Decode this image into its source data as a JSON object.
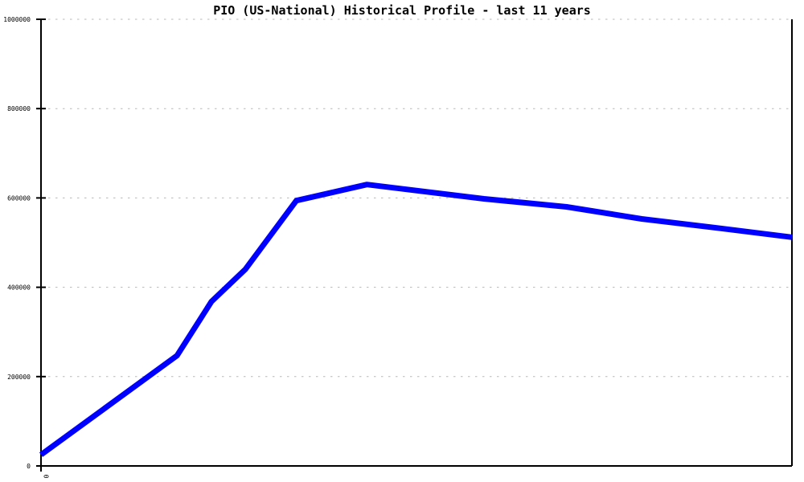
{
  "chart_data": {
    "type": "line",
    "title": "PIO (US-National) Historical Profile - last 11 years",
    "legend": "none",
    "background_color": "#ffffff",
    "axis_color": "#000000",
    "grid": {
      "horizontal_dotted": true,
      "color": "#b8b8b8"
    },
    "x_axis": {
      "label": "",
      "ticks": [
        {
          "label": "0",
          "x_frac": 0.0,
          "rotated": true
        }
      ]
    },
    "y_axis": {
      "label": "",
      "range": [
        0,
        1000000
      ],
      "ticks": [
        {
          "value": 0,
          "label": "0"
        },
        {
          "value": 200000,
          "label": "200000"
        },
        {
          "value": 400000,
          "label": "400000"
        },
        {
          "value": 600000,
          "label": "600000"
        },
        {
          "value": 800000,
          "label": "800000"
        },
        {
          "value": 1000000,
          "label": "1000000"
        }
      ]
    },
    "series": [
      {
        "name": "PIO (US-National) historical profile",
        "color": "#0000ff",
        "stroke_width": 7,
        "points": [
          {
            "x_frac": 0.0,
            "value": 25000
          },
          {
            "x_frac": 0.181,
            "value": 247000
          },
          {
            "x_frac": 0.227,
            "value": 368000
          },
          {
            "x_frac": 0.272,
            "value": 440000
          },
          {
            "x_frac": 0.34,
            "value": 594000
          },
          {
            "x_frac": 0.434,
            "value": 630000
          },
          {
            "x_frac": 0.59,
            "value": 598000
          },
          {
            "x_frac": 0.7,
            "value": 580000
          },
          {
            "x_frac": 0.8,
            "value": 553000
          },
          {
            "x_frac": 0.9,
            "value": 533000
          },
          {
            "x_frac": 1.0,
            "value": 512000
          }
        ]
      }
    ]
  }
}
